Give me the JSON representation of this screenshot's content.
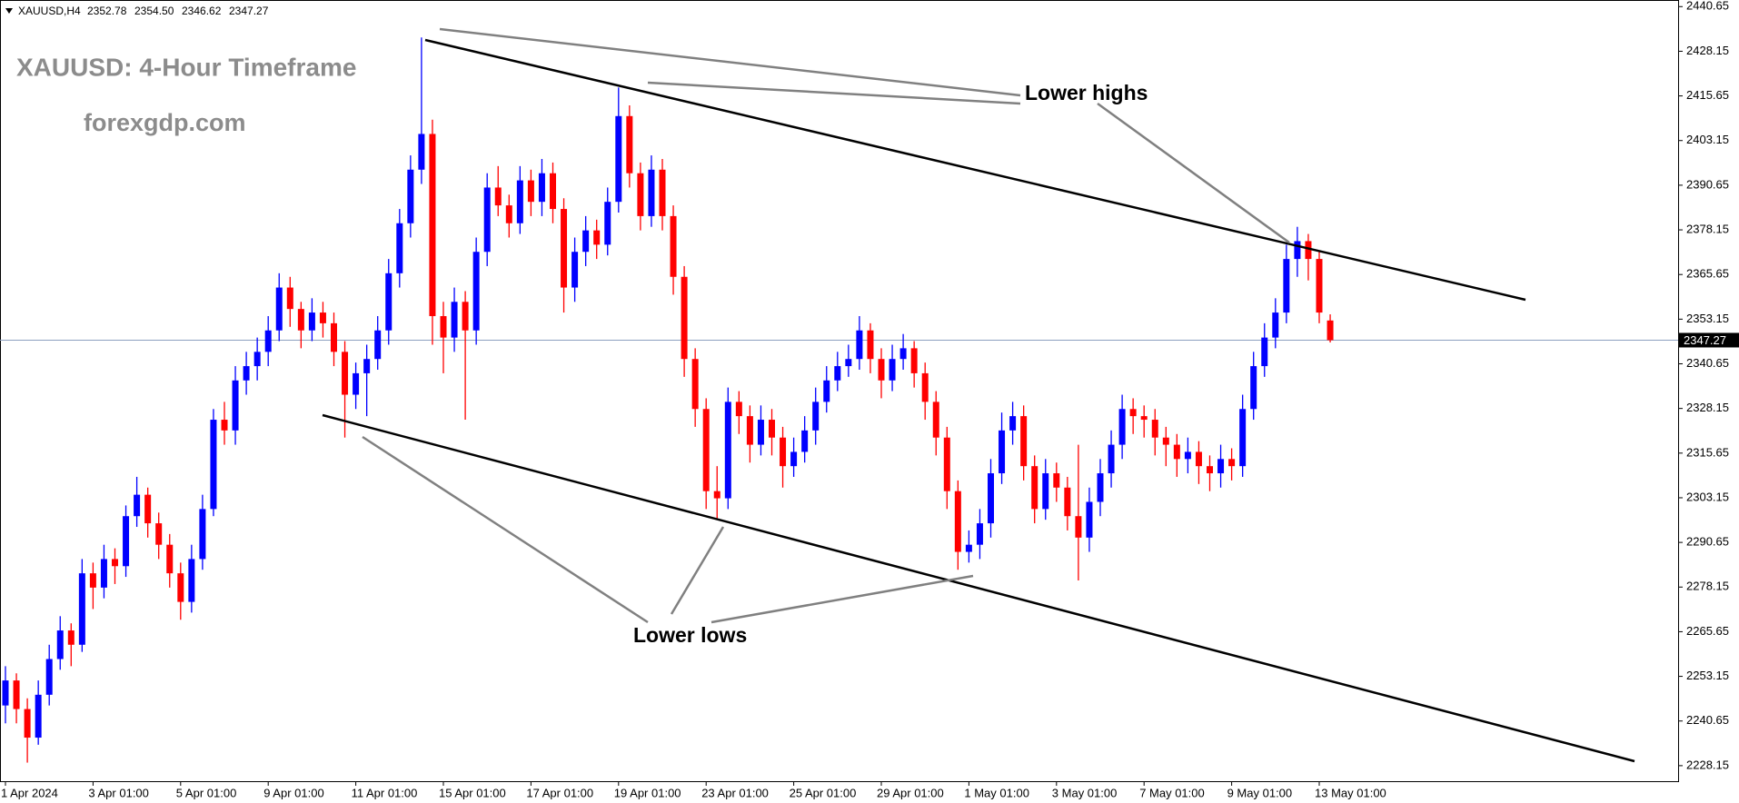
{
  "header": {
    "symbol": "XAUUSD,H4",
    "ohlc": [
      "2352.78",
      "2354.50",
      "2346.62",
      "2347.27"
    ]
  },
  "chart_data": {
    "type": "candlestick",
    "title": "XAUUSD: 4-Hour Timeframe",
    "subtitle": "forexgdp.com",
    "annotations": [
      "Lower highs",
      "Lower lows"
    ],
    "up_color": "#0000ff",
    "down_color": "#ff0000",
    "last_price": 2347.27,
    "ylim": [
      2223.8,
      2442.5
    ],
    "yticks": [
      2440.65,
      2428.15,
      2415.65,
      2403.15,
      2390.65,
      2378.15,
      2365.65,
      2353.15,
      2340.65,
      2328.15,
      2315.65,
      2303.15,
      2290.65,
      2278.15,
      2265.65,
      2253.15,
      2240.65,
      2228.15
    ],
    "xlim": [
      0,
      121
    ],
    "xticks": [
      {
        "value": 0,
        "label": "1 Apr 2024"
      },
      {
        "value": 8,
        "label": "3 Apr 01:00"
      },
      {
        "value": 16,
        "label": "5 Apr 01:00"
      },
      {
        "value": 24,
        "label": "9 Apr 01:00"
      },
      {
        "value": 32,
        "label": "11 Apr 01:00"
      },
      {
        "value": 40,
        "label": "15 Apr 01:00"
      },
      {
        "value": 48,
        "label": "17 Apr 01:00"
      },
      {
        "value": 56,
        "label": "19 Apr 01:00"
      },
      {
        "value": 64,
        "label": "23 Apr 01:00"
      },
      {
        "value": 72,
        "label": "25 Apr 01:00"
      },
      {
        "value": 80,
        "label": "29 Apr 01:00"
      },
      {
        "value": 88,
        "label": "1 May 01:00"
      },
      {
        "value": 96,
        "label": "3 May 01:00"
      },
      {
        "value": 104,
        "label": "7 May 01:00"
      },
      {
        "value": 112,
        "label": "9 May 01:00"
      },
      {
        "value": 120,
        "label": "13 May 01:00"
      }
    ],
    "candles": [
      [
        2245,
        2256,
        2240,
        2252
      ],
      [
        2252,
        2254,
        2240,
        2244
      ],
      [
        2244,
        2247,
        2229,
        2236
      ],
      [
        2236,
        2252,
        2234,
        2248
      ],
      [
        2248,
        2262,
        2245,
        2258
      ],
      [
        2258,
        2270,
        2255,
        2266
      ],
      [
        2266,
        2268,
        2256,
        2262
      ],
      [
        2262,
        2286,
        2260,
        2282
      ],
      [
        2282,
        2285,
        2272,
        2278
      ],
      [
        2278,
        2290,
        2275,
        2286
      ],
      [
        2286,
        2289,
        2279,
        2284
      ],
      [
        2284,
        2301,
        2281,
        2298
      ],
      [
        2298,
        2309,
        2295,
        2304
      ],
      [
        2304,
        2306,
        2292,
        2296
      ],
      [
        2296,
        2299,
        2286,
        2290
      ],
      [
        2290,
        2293,
        2278,
        2282
      ],
      [
        2282,
        2285,
        2269,
        2274
      ],
      [
        2274,
        2290,
        2271,
        2286
      ],
      [
        2286,
        2304,
        2283,
        2300
      ],
      [
        2300,
        2328,
        2298,
        2325
      ],
      [
        2325,
        2330,
        2318,
        2322
      ],
      [
        2322,
        2340,
        2318,
        2336
      ],
      [
        2336,
        2344,
        2332,
        2340
      ],
      [
        2340,
        2348,
        2336,
        2344
      ],
      [
        2344,
        2354,
        2340,
        2350
      ],
      [
        2350,
        2366,
        2347,
        2362
      ],
      [
        2362,
        2365,
        2351,
        2356
      ],
      [
        2356,
        2358,
        2345,
        2350
      ],
      [
        2350,
        2359,
        2347,
        2355
      ],
      [
        2355,
        2358,
        2348,
        2352
      ],
      [
        2352,
        2355,
        2340,
        2344
      ],
      [
        2344,
        2347,
        2320,
        2332
      ],
      [
        2332,
        2341,
        2328,
        2338
      ],
      [
        2338,
        2346,
        2326,
        2342
      ],
      [
        2342,
        2354,
        2339,
        2350
      ],
      [
        2350,
        2370,
        2346,
        2366
      ],
      [
        2366,
        2384,
        2362,
        2380
      ],
      [
        2380,
        2399,
        2376,
        2395
      ],
      [
        2395,
        2432,
        2391,
        2405
      ],
      [
        2405,
        2409,
        2346,
        2354
      ],
      [
        2354,
        2358,
        2338,
        2348
      ],
      [
        2348,
        2362,
        2344,
        2358
      ],
      [
        2358,
        2361,
        2325,
        2350
      ],
      [
        2350,
        2376,
        2346,
        2372
      ],
      [
        2372,
        2394,
        2368,
        2390
      ],
      [
        2390,
        2396,
        2382,
        2385
      ],
      [
        2385,
        2388,
        2376,
        2380
      ],
      [
        2380,
        2396,
        2377,
        2392
      ],
      [
        2392,
        2395,
        2382,
        2386
      ],
      [
        2386,
        2398,
        2382,
        2394
      ],
      [
        2394,
        2397,
        2380,
        2384
      ],
      [
        2384,
        2387,
        2355,
        2362
      ],
      [
        2362,
        2376,
        2358,
        2372
      ],
      [
        2372,
        2382,
        2368,
        2378
      ],
      [
        2378,
        2381,
        2370,
        2374
      ],
      [
        2374,
        2390,
        2371,
        2386
      ],
      [
        2386,
        2418,
        2383,
        2410
      ],
      [
        2410,
        2413,
        2390,
        2394
      ],
      [
        2394,
        2397,
        2378,
        2382
      ],
      [
        2382,
        2399,
        2379,
        2395
      ],
      [
        2395,
        2398,
        2378,
        2382
      ],
      [
        2382,
        2385,
        2360,
        2365
      ],
      [
        2365,
        2368,
        2337,
        2342
      ],
      [
        2342,
        2345,
        2323,
        2328
      ],
      [
        2328,
        2331,
        2300,
        2305
      ],
      [
        2305,
        2312,
        2297,
        2303
      ],
      [
        2303,
        2334,
        2300,
        2330
      ],
      [
        2330,
        2333,
        2321,
        2326
      ],
      [
        2326,
        2329,
        2313,
        2318
      ],
      [
        2318,
        2329,
        2315,
        2325
      ],
      [
        2325,
        2328,
        2315,
        2320
      ],
      [
        2320,
        2323,
        2306,
        2312
      ],
      [
        2312,
        2320,
        2309,
        2316
      ],
      [
        2316,
        2326,
        2313,
        2322
      ],
      [
        2322,
        2334,
        2318,
        2330
      ],
      [
        2330,
        2340,
        2327,
        2336
      ],
      [
        2336,
        2344,
        2333,
        2340
      ],
      [
        2340,
        2346,
        2337,
        2342
      ],
      [
        2342,
        2354,
        2339,
        2350
      ],
      [
        2350,
        2352,
        2338,
        2342
      ],
      [
        2342,
        2345,
        2331,
        2336
      ],
      [
        2336,
        2346,
        2333,
        2342
      ],
      [
        2342,
        2349,
        2339,
        2345
      ],
      [
        2345,
        2347,
        2334,
        2338
      ],
      [
        2338,
        2341,
        2325,
        2330
      ],
      [
        2330,
        2333,
        2315,
        2320
      ],
      [
        2320,
        2323,
        2300,
        2305
      ],
      [
        2305,
        2308,
        2283,
        2288
      ],
      [
        2288,
        2294,
        2285,
        2290
      ],
      [
        2290,
        2300,
        2286,
        2296
      ],
      [
        2296,
        2314,
        2292,
        2310
      ],
      [
        2310,
        2327,
        2307,
        2322
      ],
      [
        2322,
        2330,
        2318,
        2326
      ],
      [
        2326,
        2329,
        2308,
        2312
      ],
      [
        2312,
        2315,
        2296,
        2300
      ],
      [
        2300,
        2314,
        2297,
        2310
      ],
      [
        2310,
        2313,
        2302,
        2306
      ],
      [
        2306,
        2309,
        2294,
        2298
      ],
      [
        2298,
        2318,
        2280,
        2292
      ],
      [
        2292,
        2306,
        2288,
        2302
      ],
      [
        2302,
        2314,
        2298,
        2310
      ],
      [
        2310,
        2322,
        2306,
        2318
      ],
      [
        2318,
        2332,
        2314,
        2328
      ],
      [
        2328,
        2331,
        2321,
        2326
      ],
      [
        2326,
        2329,
        2320,
        2325
      ],
      [
        2325,
        2328,
        2315,
        2320
      ],
      [
        2320,
        2323,
        2312,
        2318
      ],
      [
        2318,
        2321,
        2309,
        2314
      ],
      [
        2314,
        2320,
        2310,
        2316
      ],
      [
        2316,
        2319,
        2307,
        2312
      ],
      [
        2312,
        2315,
        2305,
        2310
      ],
      [
        2310,
        2318,
        2306,
        2314
      ],
      [
        2314,
        2317,
        2308,
        2312
      ],
      [
        2312,
        2332,
        2309,
        2328
      ],
      [
        2328,
        2344,
        2325,
        2340
      ],
      [
        2340,
        2352,
        2337,
        2348
      ],
      [
        2348,
        2359,
        2345,
        2355
      ],
      [
        2355,
        2374,
        2352,
        2370
      ],
      [
        2370,
        2379,
        2365,
        2375
      ],
      [
        2375,
        2377,
        2364,
        2370
      ],
      [
        2370,
        2372,
        2352,
        2355
      ],
      [
        2352.78,
        2354.5,
        2346.62,
        2347.27
      ]
    ]
  }
}
